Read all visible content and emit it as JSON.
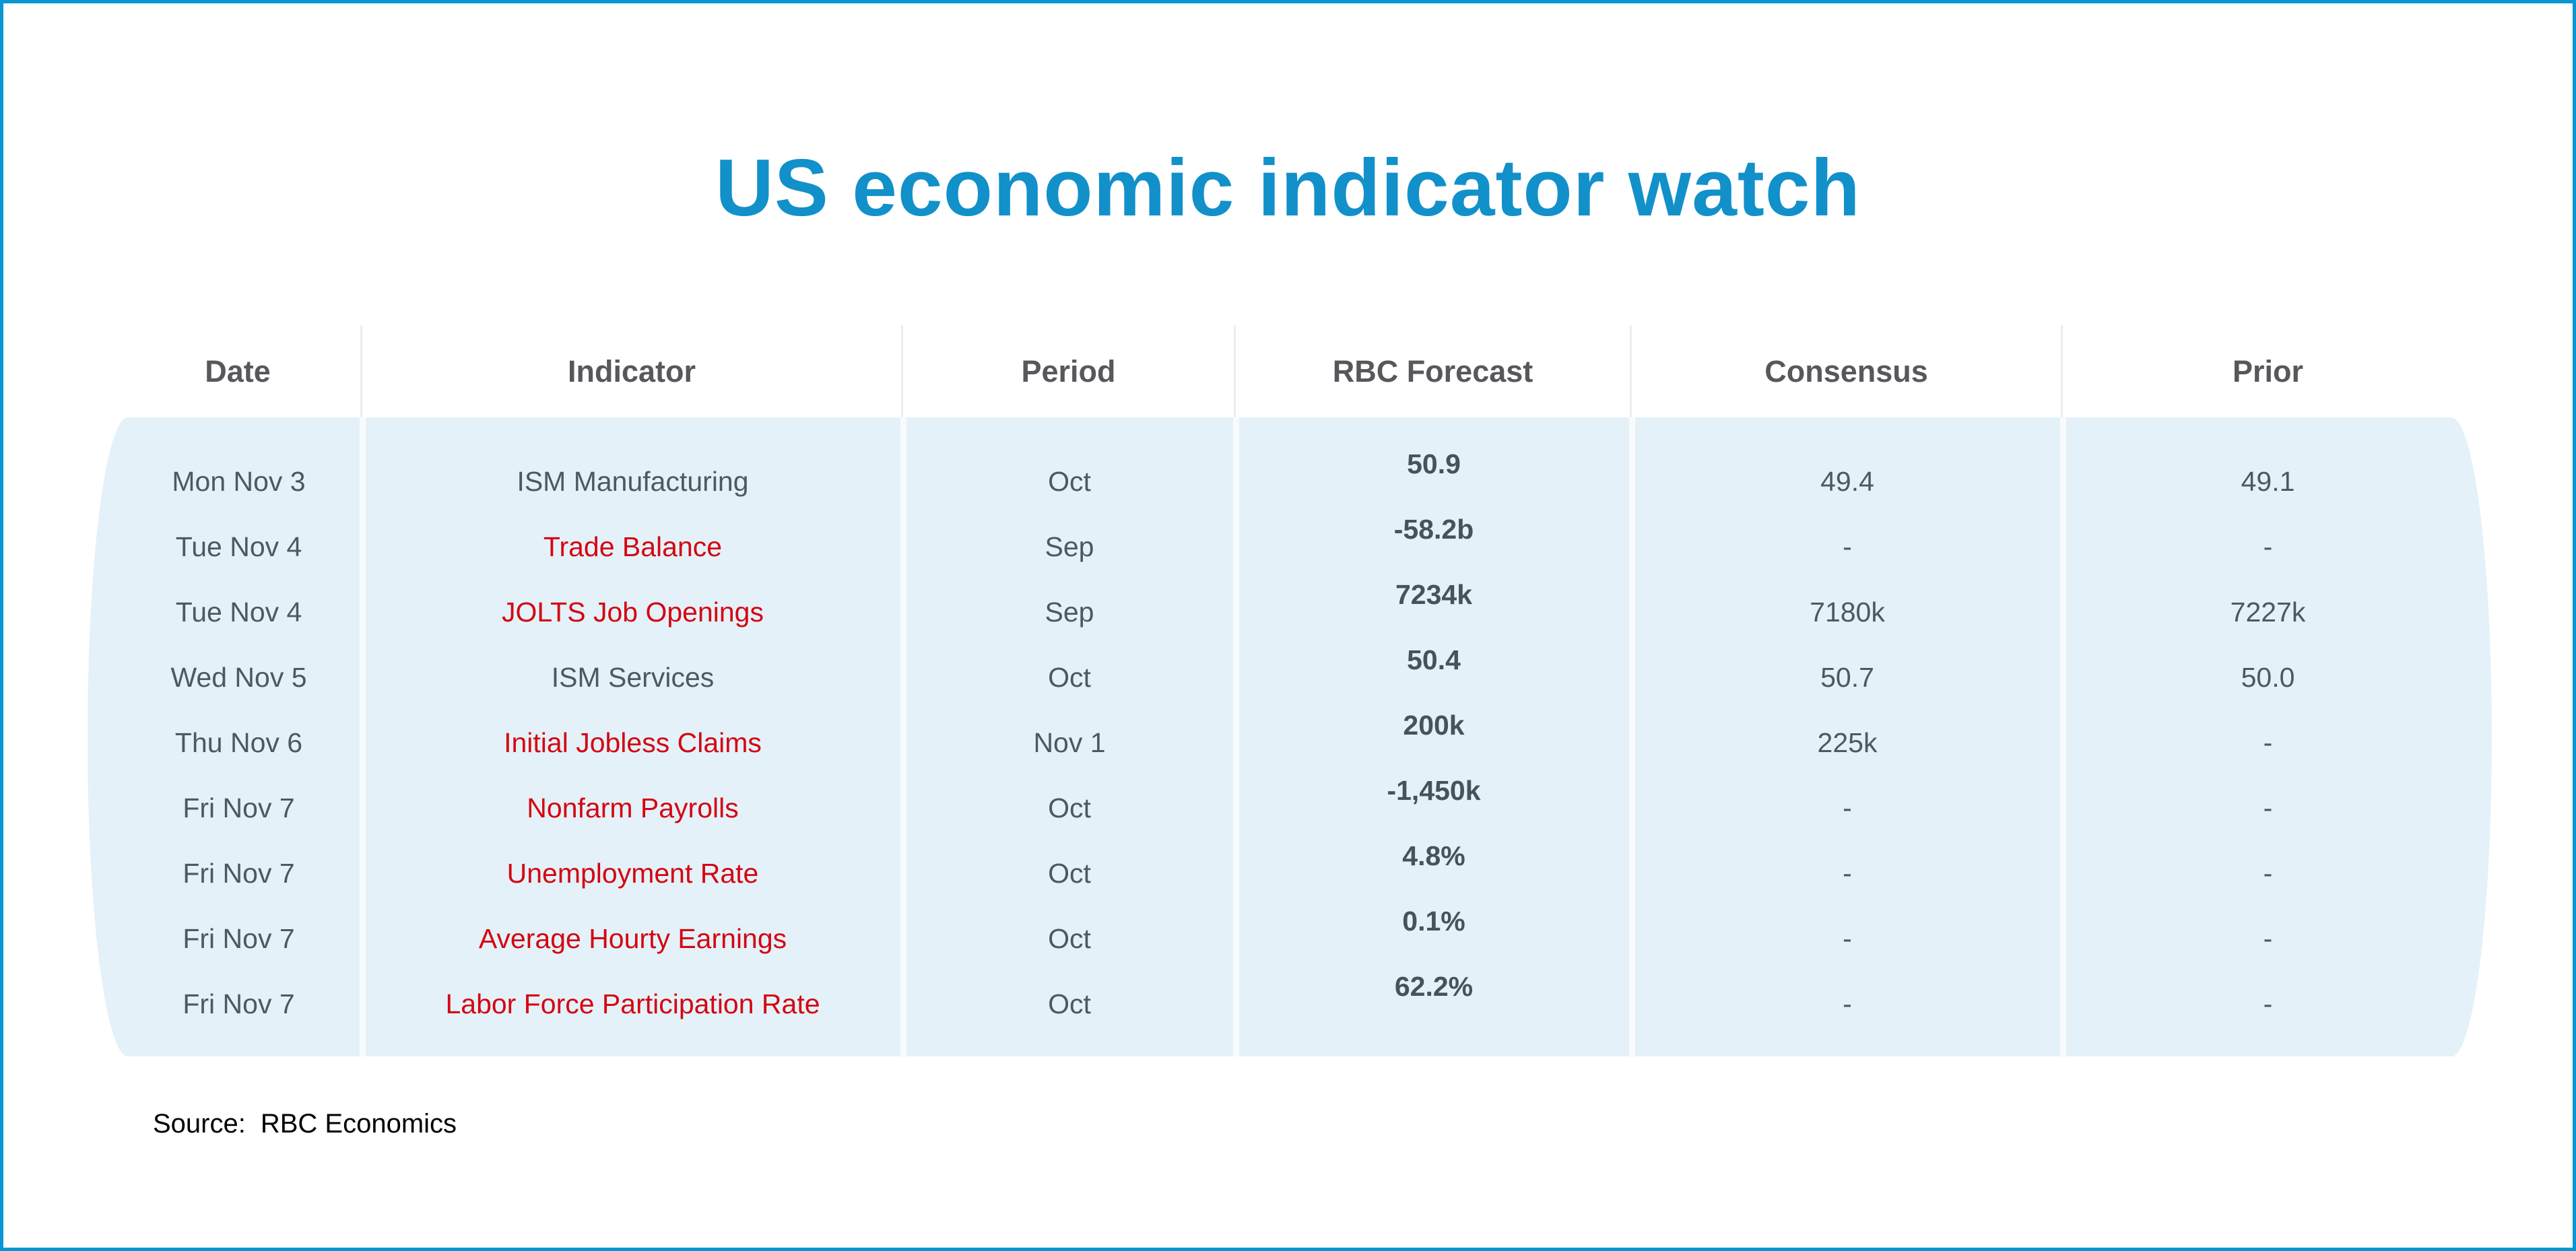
{
  "page": {
    "title": "US economic indicator watch",
    "source_label": "Source:",
    "source_value": "RBC Economics"
  },
  "colors": {
    "frame_border": "#0a96d3",
    "title_blue": "#1290ca",
    "panel_blue": "#e4f1f8",
    "header_gray": "#56585c",
    "body_gray": "#4e585f",
    "highlight_red": "#d40512"
  },
  "table": {
    "headers": [
      "Date",
      "Indicator",
      "Period",
      "RBC Forecast",
      "Consensus",
      "Prior"
    ],
    "rows": [
      {
        "date": "Mon Nov 3",
        "indicator": "ISM Manufacturing",
        "indicator_color": "gray",
        "period": "Oct",
        "rbc_forecast": "50.9",
        "consensus": "49.4",
        "prior": "49.1"
      },
      {
        "date": "Tue Nov 4",
        "indicator": "Trade Balance",
        "indicator_color": "red",
        "period": "Sep",
        "rbc_forecast": "-58.2b",
        "consensus": "-",
        "prior": "-"
      },
      {
        "date": "Tue Nov 4",
        "indicator": "JOLTS Job Openings",
        "indicator_color": "red",
        "period": "Sep",
        "rbc_forecast": "7234k",
        "consensus": "7180k",
        "prior": "7227k"
      },
      {
        "date": "Wed Nov 5",
        "indicator": "ISM Services",
        "indicator_color": "gray",
        "period": "Oct",
        "rbc_forecast": "50.4",
        "consensus": "50.7",
        "prior": "50.0"
      },
      {
        "date": "Thu Nov 6",
        "indicator": "Initial Jobless Claims",
        "indicator_color": "red",
        "period": "Nov 1",
        "rbc_forecast": "200k",
        "consensus": "225k",
        "prior": "-"
      },
      {
        "date": "Fri Nov 7",
        "indicator": "Nonfarm Payrolls",
        "indicator_color": "red",
        "period": "Oct",
        "rbc_forecast": "-1,450k",
        "consensus": "-",
        "prior": "-"
      },
      {
        "date": "Fri Nov 7",
        "indicator": "Unemployment Rate",
        "indicator_color": "red",
        "period": "Oct",
        "rbc_forecast": "4.8%",
        "consensus": "-",
        "prior": "-"
      },
      {
        "date": "Fri Nov 7",
        "indicator": "Average Hourty Earnings",
        "indicator_color": "red",
        "period": "Oct",
        "rbc_forecast": "0.1%",
        "consensus": "-",
        "prior": "-"
      },
      {
        "date": "Fri Nov 7",
        "indicator": "Labor Force Participation Rate",
        "indicator_color": "red",
        "period": "Oct",
        "rbc_forecast": "62.2%",
        "consensus": "-",
        "prior": "-"
      }
    ]
  },
  "chart_data": {
    "type": "table",
    "title": "US economic indicator watch",
    "columns": [
      "Date",
      "Indicator",
      "Period",
      "RBC Forecast",
      "Consensus",
      "Prior"
    ],
    "rows": [
      [
        "Mon Nov 3",
        "ISM Manufacturing",
        "Oct",
        "50.9",
        "49.4",
        "49.1"
      ],
      [
        "Tue Nov 4",
        "Trade Balance",
        "Sep",
        "-58.2b",
        "-",
        "-"
      ],
      [
        "Tue Nov 4",
        "JOLTS Job Openings",
        "Sep",
        "7234k",
        "7180k",
        "7227k"
      ],
      [
        "Wed Nov 5",
        "ISM Services",
        "Oct",
        "50.4",
        "50.7",
        "50.0"
      ],
      [
        "Thu Nov 6",
        "Initial Jobless Claims",
        "Nov 1",
        "200k",
        "225k",
        "-"
      ],
      [
        "Fri Nov 7",
        "Nonfarm Payrolls",
        "Oct",
        "-1,450k",
        "-",
        "-"
      ],
      [
        "Fri Nov 7",
        "Unemployment Rate",
        "Oct",
        "4.8%",
        "-",
        "-"
      ],
      [
        "Fri Nov 7",
        "Average Hourty Earnings",
        "Oct",
        "0.1%",
        "-",
        "-"
      ],
      [
        "Fri Nov 7",
        "Labor Force Participation Rate",
        "Oct",
        "62.2%",
        "-",
        "-"
      ]
    ],
    "source": "RBC Economics",
    "notes": "Red indicator names highlighted; RBC Forecast column bold"
  }
}
